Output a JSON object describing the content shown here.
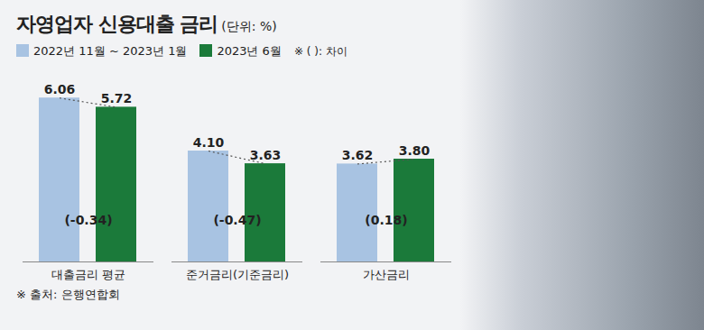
{
  "chart_data": {
    "type": "bar",
    "title": "자영업자 신용대출 금리",
    "subtitle": "(단위: %)",
    "categories": [
      "대출금리 평균",
      "준거금리(기준금리)",
      "가산금리"
    ],
    "series": [
      {
        "name": "2022년 11월 ~ 2023년 1월",
        "color": "#a8c3e2",
        "values": [
          6.06,
          4.1,
          3.62
        ],
        "value_labels": [
          "6.06",
          "4.10",
          "3.62"
        ]
      },
      {
        "name": "2023년 6월",
        "color": "#1b7a3a",
        "values": [
          5.72,
          3.63,
          3.8
        ],
        "value_labels": [
          "5.72",
          "3.63",
          "3.80"
        ]
      }
    ],
    "differences": {
      "values": [
        -0.34,
        -0.47,
        0.18
      ],
      "labels": [
        "(-0.34)",
        "(-0.47)",
        "(0.18)"
      ]
    },
    "difference_note": "※ ( ): 차이",
    "source": "※ 출처: 은행연합회",
    "ylim": [
      0,
      7
    ],
    "data_labels": true,
    "tick_labels": "x",
    "grid": false
  }
}
